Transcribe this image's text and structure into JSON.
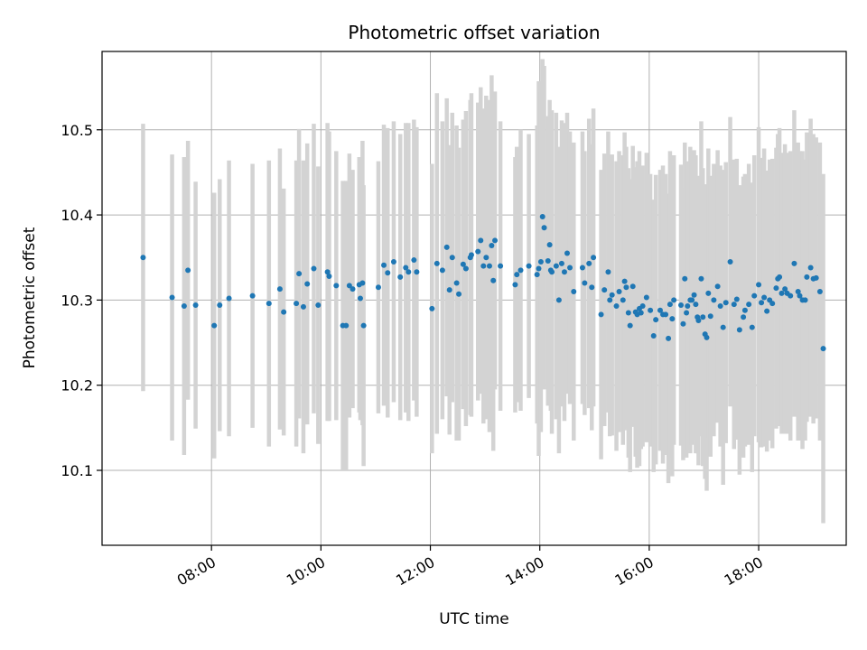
{
  "chart_data": {
    "type": "scatter",
    "title": "Photometric offset variation",
    "xlabel": "UTC time",
    "ylabel": "Photometric offset",
    "x_unit": "hours UTC",
    "xlim": [
      6.0,
      19.6
    ],
    "ylim": [
      10.012,
      10.592
    ],
    "x_ticks": [
      {
        "value": 8,
        "label": "08:00"
      },
      {
        "value": 10,
        "label": "10:00"
      },
      {
        "value": 12,
        "label": "12:00"
      },
      {
        "value": 14,
        "label": "14:00"
      },
      {
        "value": 16,
        "label": "16:00"
      },
      {
        "value": 18,
        "label": "18:00"
      }
    ],
    "y_ticks": [
      {
        "value": 10.1,
        "label": "10.1"
      },
      {
        "value": 10.2,
        "label": "10.2"
      },
      {
        "value": 10.3,
        "label": "10.3"
      },
      {
        "value": 10.4,
        "label": "10.4"
      },
      {
        "value": 10.5,
        "label": "10.5"
      }
    ],
    "grid": true,
    "point_color": "#1f77b4",
    "errorbar_color": "#d3d3d3",
    "series": [
      {
        "points": [
          [
            6.75,
            10.35,
            0.157
          ],
          [
            7.28,
            10.303,
            0.168
          ],
          [
            7.5,
            10.293,
            0.175
          ],
          [
            7.57,
            10.335,
            0.152
          ],
          [
            7.71,
            10.294,
            0.145
          ],
          [
            8.05,
            10.27,
            0.156
          ],
          [
            8.15,
            10.294,
            0.148
          ],
          [
            8.32,
            10.302,
            0.162
          ],
          [
            8.75,
            10.305,
            0.155
          ],
          [
            9.05,
            10.296,
            0.168
          ],
          [
            9.25,
            10.313,
            0.165
          ],
          [
            9.32,
            10.286,
            0.145
          ],
          [
            9.55,
            10.296,
            0.168
          ],
          [
            9.6,
            10.331,
            0.17
          ],
          [
            9.68,
            10.292,
            0.172
          ],
          [
            9.75,
            10.319,
            0.165
          ],
          [
            9.87,
            10.337,
            0.17
          ],
          [
            9.95,
            10.294,
            0.163
          ],
          [
            10.12,
            10.333,
            0.175
          ],
          [
            10.15,
            10.328,
            0.17
          ],
          [
            10.28,
            10.317,
            0.158
          ],
          [
            10.4,
            10.27,
            0.17
          ],
          [
            10.46,
            10.27,
            0.17
          ],
          [
            10.52,
            10.317,
            0.155
          ],
          [
            10.58,
            10.313,
            0.14
          ],
          [
            10.7,
            10.318,
            0.15
          ],
          [
            10.72,
            10.302,
            0.143
          ],
          [
            10.76,
            10.32,
            0.167
          ],
          [
            10.78,
            10.27,
            0.165
          ],
          [
            11.05,
            10.315,
            0.148
          ],
          [
            11.15,
            10.341,
            0.165
          ],
          [
            11.22,
            10.332,
            0.17
          ],
          [
            11.33,
            10.345,
            0.165
          ],
          [
            11.45,
            10.327,
            0.168
          ],
          [
            11.55,
            10.338,
            0.17
          ],
          [
            11.6,
            10.333,
            0.175
          ],
          [
            11.7,
            10.347,
            0.165
          ],
          [
            11.75,
            10.333,
            0.17
          ],
          [
            12.03,
            10.29,
            0.17
          ],
          [
            12.12,
            10.343,
            0.2
          ],
          [
            12.22,
            10.335,
            0.175
          ],
          [
            12.3,
            10.362,
            0.175
          ],
          [
            12.35,
            10.312,
            0.17
          ],
          [
            12.4,
            10.35,
            0.17
          ],
          [
            12.48,
            10.32,
            0.185
          ],
          [
            12.52,
            10.307,
            0.172
          ],
          [
            12.6,
            10.342,
            0.17
          ],
          [
            12.65,
            10.337,
            0.185
          ],
          [
            12.73,
            10.35,
            0.185
          ],
          [
            12.75,
            10.353,
            0.19
          ],
          [
            12.87,
            10.357,
            0.175
          ],
          [
            12.92,
            10.37,
            0.18
          ],
          [
            12.97,
            10.34,
            0.185
          ],
          [
            13.02,
            10.35,
            0.19
          ],
          [
            13.08,
            10.34,
            0.195
          ],
          [
            13.12,
            10.364,
            0.2
          ],
          [
            13.15,
            10.323,
            0.2
          ],
          [
            13.18,
            10.37,
            0.175
          ],
          [
            13.28,
            10.34,
            0.17
          ],
          [
            13.55,
            10.318,
            0.15
          ],
          [
            13.58,
            10.33,
            0.15
          ],
          [
            13.65,
            10.335,
            0.165
          ],
          [
            13.8,
            10.34,
            0.155
          ],
          [
            13.95,
            10.33,
            0.175
          ],
          [
            13.98,
            10.337,
            0.22
          ],
          [
            14.02,
            10.345,
            0.2
          ],
          [
            14.05,
            10.398,
            0.185
          ],
          [
            14.08,
            10.385,
            0.19
          ],
          [
            14.15,
            10.346,
            0.17
          ],
          [
            14.18,
            10.365,
            0.17
          ],
          [
            14.2,
            10.335,
            0.165
          ],
          [
            14.22,
            10.333,
            0.19
          ],
          [
            14.3,
            10.34,
            0.18
          ],
          [
            14.35,
            10.3,
            0.18
          ],
          [
            14.4,
            10.343,
            0.168
          ],
          [
            14.45,
            10.333,
            0.175
          ],
          [
            14.5,
            10.355,
            0.165
          ],
          [
            14.55,
            10.338,
            0.16
          ],
          [
            14.62,
            10.31,
            0.175
          ],
          [
            14.78,
            10.338,
            0.16
          ],
          [
            14.82,
            10.32,
            0.155
          ],
          [
            14.9,
            10.343,
            0.17
          ],
          [
            14.95,
            10.315,
            0.168
          ],
          [
            14.98,
            10.35,
            0.175
          ],
          [
            15.12,
            10.283,
            0.17
          ],
          [
            15.18,
            10.312,
            0.16
          ],
          [
            15.25,
            10.333,
            0.165
          ],
          [
            15.28,
            10.3,
            0.16
          ],
          [
            15.32,
            10.306,
            0.165
          ],
          [
            15.4,
            10.293,
            0.17
          ],
          [
            15.45,
            10.31,
            0.165
          ],
          [
            15.52,
            10.3,
            0.17
          ],
          [
            15.55,
            10.322,
            0.175
          ],
          [
            15.58,
            10.315,
            0.165
          ],
          [
            15.62,
            10.285,
            0.17
          ],
          [
            15.65,
            10.27,
            0.172
          ],
          [
            15.7,
            10.316,
            0.165
          ],
          [
            15.75,
            10.286,
            0.17
          ],
          [
            15.78,
            10.283,
            0.18
          ],
          [
            15.82,
            10.29,
            0.185
          ],
          [
            15.85,
            10.285,
            0.16
          ],
          [
            15.88,
            10.293,
            0.165
          ],
          [
            15.95,
            10.303,
            0.17
          ],
          [
            16.02,
            10.288,
            0.16
          ],
          [
            16.08,
            10.258,
            0.16
          ],
          [
            16.12,
            10.277,
            0.17
          ],
          [
            16.2,
            10.288,
            0.165
          ],
          [
            16.25,
            10.283,
            0.175
          ],
          [
            16.3,
            10.283,
            0.165
          ],
          [
            16.35,
            10.255,
            0.17
          ],
          [
            16.38,
            10.295,
            0.18
          ],
          [
            16.42,
            10.278,
            0.185
          ],
          [
            16.45,
            10.3,
            0.17
          ],
          [
            16.58,
            10.294,
            0.165
          ],
          [
            16.62,
            10.272,
            0.16
          ],
          [
            16.65,
            10.325,
            0.16
          ],
          [
            16.68,
            10.285,
            0.17
          ],
          [
            16.7,
            10.293,
            0.17
          ],
          [
            16.75,
            10.3,
            0.18
          ],
          [
            16.78,
            10.3,
            0.17
          ],
          [
            16.82,
            10.306,
            0.17
          ],
          [
            16.85,
            10.295,
            0.175
          ],
          [
            16.88,
            10.28,
            0.16
          ],
          [
            16.9,
            10.276,
            0.17
          ],
          [
            16.95,
            10.325,
            0.185
          ],
          [
            16.98,
            10.28,
            0.175
          ],
          [
            17.02,
            10.26,
            0.17
          ],
          [
            17.05,
            10.256,
            0.18
          ],
          [
            17.08,
            10.308,
            0.17
          ],
          [
            17.12,
            10.281,
            0.165
          ],
          [
            17.18,
            10.3,
            0.16
          ],
          [
            17.25,
            10.316,
            0.16
          ],
          [
            17.3,
            10.293,
            0.165
          ],
          [
            17.35,
            10.268,
            0.185
          ],
          [
            17.4,
            10.297,
            0.165
          ],
          [
            17.48,
            10.345,
            0.17
          ],
          [
            17.55,
            10.295,
            0.17
          ],
          [
            17.6,
            10.301,
            0.165
          ],
          [
            17.65,
            10.265,
            0.17
          ],
          [
            17.72,
            10.28,
            0.165
          ],
          [
            17.75,
            10.288,
            0.16
          ],
          [
            17.82,
            10.295,
            0.165
          ],
          [
            17.88,
            10.268,
            0.17
          ],
          [
            17.92,
            10.305,
            0.165
          ],
          [
            18.0,
            10.318,
            0.185
          ],
          [
            18.05,
            10.297,
            0.17
          ],
          [
            18.1,
            10.303,
            0.175
          ],
          [
            18.15,
            10.287,
            0.165
          ],
          [
            18.2,
            10.3,
            0.165
          ],
          [
            18.25,
            10.296,
            0.17
          ],
          [
            18.32,
            10.314,
            0.165
          ],
          [
            18.35,
            10.325,
            0.17
          ],
          [
            18.38,
            10.327,
            0.175
          ],
          [
            18.42,
            10.308,
            0.165
          ],
          [
            18.48,
            10.313,
            0.17
          ],
          [
            18.52,
            10.308,
            0.165
          ],
          [
            18.58,
            10.305,
            0.17
          ],
          [
            18.65,
            10.343,
            0.18
          ],
          [
            18.72,
            10.31,
            0.175
          ],
          [
            18.75,
            10.305,
            0.17
          ],
          [
            18.8,
            10.3,
            0.175
          ],
          [
            18.85,
            10.3,
            0.165
          ],
          [
            18.88,
            10.327,
            0.17
          ],
          [
            18.95,
            10.338,
            0.175
          ],
          [
            19.0,
            10.325,
            0.17
          ],
          [
            19.05,
            10.326,
            0.165
          ],
          [
            19.12,
            10.31,
            0.175
          ],
          [
            19.18,
            10.243,
            0.205
          ]
        ]
      }
    ]
  }
}
